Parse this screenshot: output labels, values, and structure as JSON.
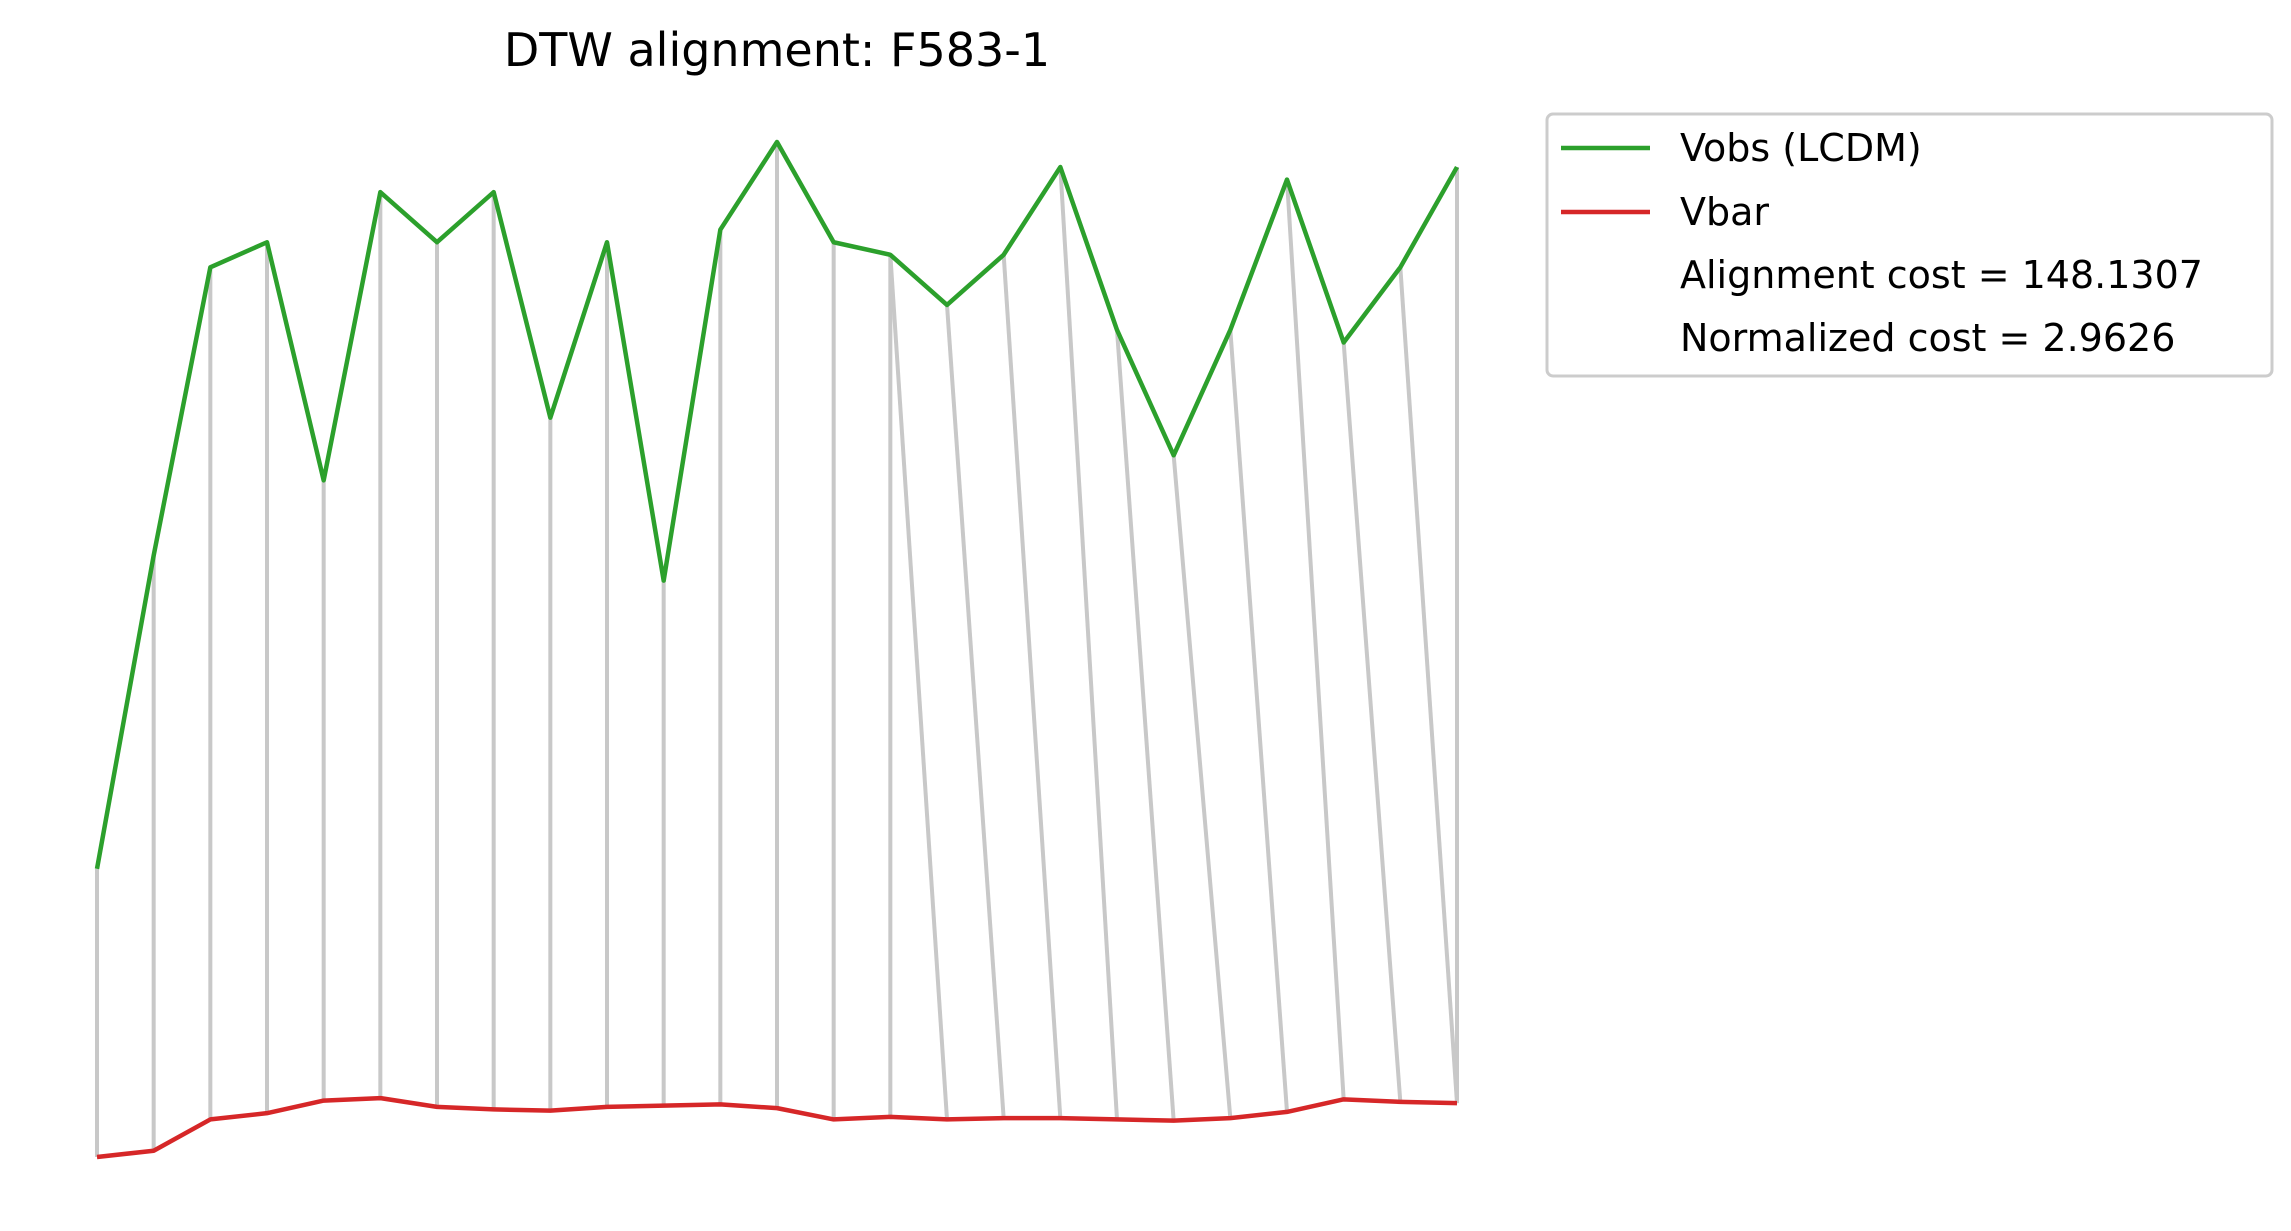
{
  "chart_data": {
    "type": "line",
    "title": "DTW alignment: F583-1",
    "xlabel": "",
    "ylabel": "",
    "axes_visible": false,
    "grid": false,
    "legend_position": "outside-top-right",
    "series": [
      {
        "name": "Vobs (LCDM)",
        "color": "#2ca02c",
        "values": [
          0.3,
          0.55,
          0.78,
          0.8,
          0.61,
          0.84,
          0.8,
          0.84,
          0.66,
          0.8,
          0.53,
          0.81,
          0.88,
          0.8,
          0.79,
          0.75,
          0.79,
          0.86,
          0.73,
          0.63,
          0.73,
          0.85,
          0.72,
          0.78,
          0.86
        ]
      },
      {
        "name": "Vbar",
        "color": "#d62728",
        "values": [
          0.07,
          0.075,
          0.1,
          0.105,
          0.115,
          0.117,
          0.11,
          0.108,
          0.107,
          0.11,
          0.111,
          0.112,
          0.109,
          0.1,
          0.102,
          0.1,
          0.101,
          0.101,
          0.1,
          0.099,
          0.101,
          0.106,
          0.116,
          0.114,
          0.113
        ]
      }
    ],
    "alignment_color": "#c8c8c8",
    "alignment_path": [
      [
        0,
        0
      ],
      [
        1,
        1
      ],
      [
        2,
        2
      ],
      [
        3,
        3
      ],
      [
        4,
        4
      ],
      [
        5,
        5
      ],
      [
        6,
        6
      ],
      [
        7,
        7
      ],
      [
        8,
        8
      ],
      [
        9,
        9
      ],
      [
        10,
        10
      ],
      [
        11,
        11
      ],
      [
        12,
        12
      ],
      [
        13,
        13
      ],
      [
        14,
        14
      ],
      [
        14,
        15
      ],
      [
        15,
        16
      ],
      [
        16,
        17
      ],
      [
        17,
        18
      ],
      [
        18,
        19
      ],
      [
        19,
        20
      ],
      [
        20,
        21
      ],
      [
        21,
        22
      ],
      [
        22,
        23
      ],
      [
        23,
        24
      ],
      [
        24,
        24
      ]
    ],
    "annotations": [
      "Alignment cost = 148.1307",
      "Normalized cost = 2.9626"
    ]
  }
}
